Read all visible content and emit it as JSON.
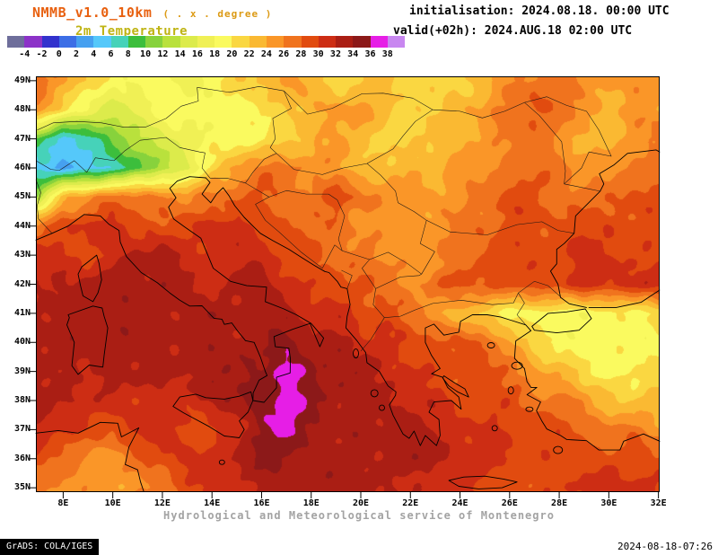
{
  "header": {
    "model": "NMMB_v1.0_10km",
    "resolution": "( . x . degree )",
    "variable": "2m Temperature",
    "init_line": "initialisation: 2024.08.18. 00:00 UTC",
    "valid_line": "valid(+02h): 2024.AUG.18 02:00 UTC"
  },
  "footer": {
    "service": "Hydrological and Meteorological service of Montenegro",
    "grads": "GrADS: COLA/IGES",
    "created": "2024-08-18-07:26"
  },
  "chart_data": {
    "type": "heatmap",
    "title": "2m Temperature",
    "model": "NMMB_v1.0_10km",
    "projection": "lon-lat",
    "x_axis": {
      "ticks": [
        "8E",
        "10E",
        "12E",
        "14E",
        "16E",
        "18E",
        "20E",
        "22E",
        "24E",
        "26E",
        "28E",
        "30E",
        "32E"
      ],
      "range": [
        6.9,
        32.05
      ]
    },
    "y_axis": {
      "ticks": [
        "49N",
        "48N",
        "47N",
        "46N",
        "45N",
        "44N",
        "43N",
        "42N",
        "41N",
        "40N",
        "39N",
        "38N",
        "37N",
        "36N",
        "35N"
      ],
      "range": [
        34.85,
        49.15
      ]
    },
    "colorbar": {
      "levels": [
        -4,
        -2,
        0,
        2,
        4,
        6,
        8,
        10,
        12,
        14,
        16,
        18,
        20,
        22,
        24,
        26,
        28,
        30,
        32,
        34,
        36,
        38
      ],
      "colors": [
        "#6e6e9b",
        "#8c32c8",
        "#3232cd",
        "#3c6ee6",
        "#46a0f0",
        "#55c8fa",
        "#46d2b9",
        "#3cbe3c",
        "#87d23c",
        "#b9e13c",
        "#dceb4b",
        "#f0f055",
        "#fafa5f",
        "#fad741",
        "#fab932",
        "#fa9628",
        "#f0731e",
        "#e14b0f",
        "#cd2d14",
        "#aa1e14",
        "#8c1919",
        "#e61ee6",
        "#c887f0"
      ]
    },
    "grid": {
      "note": "2m temperature field estimated from shading, 1-degree sampling",
      "lon_start": 7,
      "lon_step": 1,
      "lat_start": 49,
      "lat_step": -1,
      "values": [
        [
          27,
          25,
          21,
          19,
          19,
          19,
          17,
          19,
          21,
          23,
          25,
          23,
          21,
          21,
          23,
          21,
          21,
          21,
          23,
          25,
          27,
          27,
          25,
          25,
          25,
          25
        ],
        [
          25,
          21,
          17,
          15,
          17,
          19,
          19,
          19,
          19,
          21,
          21,
          23,
          25,
          25,
          23,
          21,
          21,
          23,
          25,
          27,
          29,
          27,
          25,
          23,
          25,
          25
        ],
        [
          9,
          5,
          7,
          11,
          13,
          15,
          17,
          19,
          19,
          19,
          21,
          23,
          25,
          23,
          21,
          21,
          23,
          23,
          25,
          27,
          27,
          25,
          23,
          23,
          25,
          27
        ],
        [
          5,
          3,
          5,
          7,
          9,
          13,
          15,
          21,
          25,
          27,
          27,
          25,
          25,
          23,
          23,
          23,
          23,
          25,
          25,
          27,
          27,
          27,
          25,
          25,
          27,
          27
        ],
        [
          13,
          23,
          25,
          27,
          27,
          27,
          25,
          27,
          27,
          29,
          27,
          27,
          29,
          27,
          25,
          25,
          25,
          25,
          27,
          29,
          29,
          27,
          27,
          27,
          29,
          29
        ],
        [
          27,
          29,
          31,
          31,
          29,
          29,
          29,
          31,
          31,
          29,
          29,
          27,
          27,
          25,
          25,
          25,
          25,
          27,
          27,
          29,
          29,
          29,
          29,
          29,
          29,
          29
        ],
        [
          31,
          31,
          29,
          31,
          33,
          33,
          31,
          31,
          31,
          31,
          29,
          29,
          27,
          27,
          25,
          25,
          25,
          27,
          29,
          29,
          29,
          29,
          31,
          31,
          29,
          29
        ],
        [
          31,
          33,
          33,
          33,
          33,
          33,
          33,
          31,
          33,
          33,
          31,
          29,
          29,
          29,
          27,
          25,
          27,
          29,
          29,
          29,
          29,
          29,
          31,
          31,
          31,
          31
        ],
        [
          33,
          33,
          33,
          33,
          33,
          33,
          33,
          33,
          33,
          33,
          33,
          31,
          31,
          29,
          29,
          27,
          25,
          23,
          21,
          19,
          19,
          19,
          19,
          19,
          19,
          21
        ],
        [
          33,
          33,
          33,
          33,
          33,
          33,
          33,
          33,
          33,
          33,
          35,
          33,
          33,
          31,
          31,
          29,
          29,
          29,
          27,
          25,
          21,
          19,
          19,
          19,
          19,
          19
        ],
        [
          33,
          33,
          31,
          33,
          33,
          33,
          33,
          33,
          33,
          35,
          37,
          35,
          33,
          33,
          31,
          31,
          29,
          29,
          29,
          27,
          25,
          23,
          21,
          19,
          19,
          21
        ],
        [
          33,
          33,
          31,
          31,
          31,
          31,
          31,
          33,
          33,
          35,
          37,
          35,
          33,
          33,
          33,
          31,
          31,
          29,
          29,
          29,
          27,
          27,
          25,
          23,
          21,
          23
        ],
        [
          31,
          31,
          29,
          29,
          31,
          31,
          29,
          29,
          31,
          35,
          37,
          33,
          33,
          33,
          33,
          33,
          31,
          31,
          31,
          29,
          29,
          29,
          27,
          27,
          27,
          25
        ],
        [
          29,
          27,
          25,
          25,
          27,
          29,
          31,
          31,
          33,
          35,
          33,
          33,
          33,
          33,
          33,
          33,
          33,
          31,
          31,
          31,
          29,
          29,
          29,
          29,
          29,
          29
        ],
        [
          27,
          25,
          25,
          25,
          25,
          27,
          29,
          31,
          31,
          33,
          33,
          33,
          33,
          33,
          33,
          31,
          31,
          31,
          29,
          29,
          29,
          29,
          31,
          31,
          31,
          31
        ]
      ]
    }
  }
}
